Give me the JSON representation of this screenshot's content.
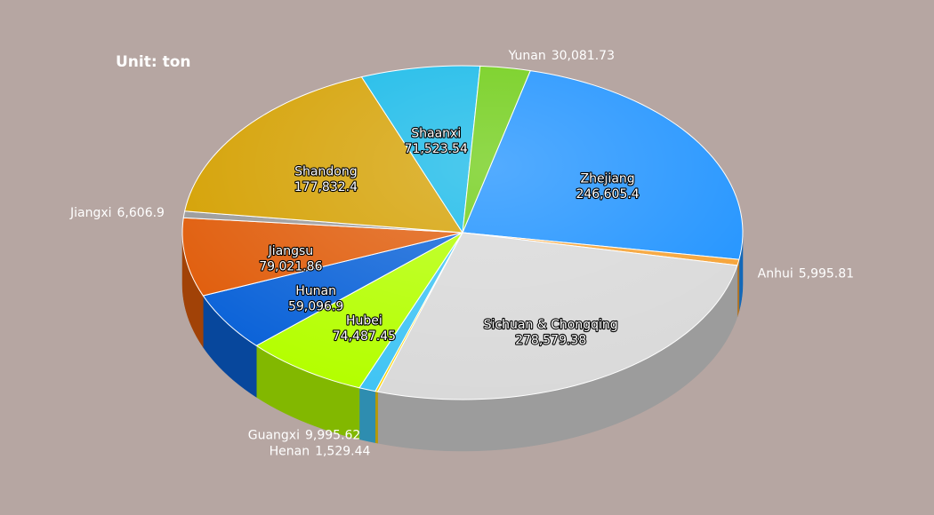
{
  "chart_data": {
    "type": "pie",
    "title": "Unit: ton",
    "categories": [
      "Zhejiang",
      "Anhui",
      "Sichuan & Chongqing",
      "Henan",
      "Guangxi",
      "Hubei",
      "Hunan",
      "Jiangsu",
      "Jiangxi",
      "Shandong",
      "Shaanxi",
      "Yunan"
    ],
    "values": [
      246605.4,
      5995.81,
      278579.38,
      1529.44,
      9995.62,
      74487.45,
      59096.9,
      79021.86,
      6606.9,
      177832.4,
      71523.54,
      30081.73
    ],
    "value_labels": [
      "246,605.4",
      "5,995.81",
      "278,579.38",
      "1,529.44",
      "9,995.62",
      "74,487.45",
      "59,096.9",
      "79,021.86",
      "6,606.9",
      "177,832.4",
      "71,523.54",
      "30,081.73"
    ],
    "colors": [
      "#1a90ff",
      "#f5a030",
      "#d9d9d9",
      "#ffd400",
      "#40c4f4",
      "#b4ff00",
      "#0a62d8",
      "#e05c0a",
      "#9a9a9a",
      "#d4a000",
      "#12b8e8",
      "#6ccc10"
    ]
  }
}
